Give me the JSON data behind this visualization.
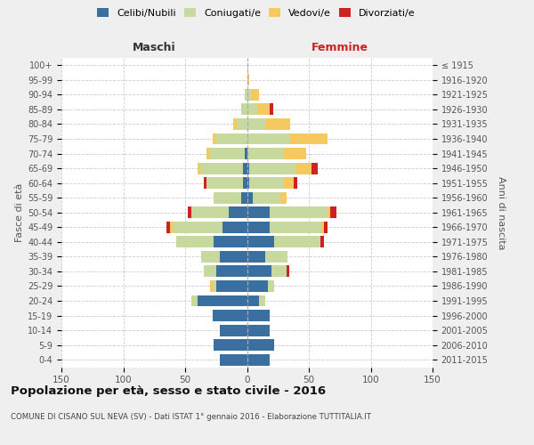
{
  "age_groups": [
    "0-4",
    "5-9",
    "10-14",
    "15-19",
    "20-24",
    "25-29",
    "30-34",
    "35-39",
    "40-44",
    "45-49",
    "50-54",
    "55-59",
    "60-64",
    "65-69",
    "70-74",
    "75-79",
    "80-84",
    "85-89",
    "90-94",
    "95-99",
    "100+"
  ],
  "birth_years": [
    "2011-2015",
    "2006-2010",
    "2001-2005",
    "1996-2000",
    "1991-1995",
    "1986-1990",
    "1981-1985",
    "1976-1980",
    "1971-1975",
    "1966-1970",
    "1961-1965",
    "1956-1960",
    "1951-1955",
    "1946-1950",
    "1941-1945",
    "1936-1940",
    "1931-1935",
    "1926-1930",
    "1921-1925",
    "1916-1920",
    "≤ 1915"
  ],
  "males": {
    "celibi": [
      22,
      27,
      22,
      28,
      40,
      25,
      25,
      22,
      27,
      20,
      15,
      5,
      3,
      3,
      2,
      0,
      0,
      0,
      0,
      0,
      0
    ],
    "coniugati": [
      0,
      0,
      0,
      0,
      5,
      3,
      10,
      15,
      30,
      40,
      30,
      22,
      30,
      35,
      28,
      25,
      8,
      5,
      2,
      0,
      0
    ],
    "vedovi": [
      0,
      0,
      0,
      0,
      0,
      2,
      0,
      0,
      0,
      2,
      0,
      0,
      0,
      2,
      3,
      3,
      3,
      0,
      0,
      0,
      0
    ],
    "divorziati": [
      0,
      0,
      0,
      0,
      0,
      0,
      0,
      0,
      0,
      3,
      3,
      0,
      2,
      0,
      0,
      0,
      0,
      0,
      0,
      0,
      0
    ]
  },
  "females": {
    "nubili": [
      18,
      22,
      18,
      18,
      10,
      17,
      20,
      15,
      22,
      18,
      18,
      5,
      2,
      2,
      0,
      0,
      0,
      0,
      0,
      0,
      0
    ],
    "coniugate": [
      0,
      0,
      0,
      0,
      5,
      5,
      12,
      18,
      37,
      42,
      47,
      22,
      28,
      38,
      30,
      35,
      15,
      8,
      3,
      0,
      0
    ],
    "vedove": [
      0,
      0,
      0,
      0,
      0,
      0,
      0,
      0,
      0,
      2,
      2,
      5,
      8,
      12,
      18,
      30,
      20,
      10,
      7,
      2,
      0
    ],
    "divorziate": [
      0,
      0,
      0,
      0,
      0,
      0,
      2,
      0,
      3,
      3,
      5,
      0,
      3,
      5,
      0,
      0,
      0,
      3,
      0,
      0,
      0
    ]
  },
  "colors": {
    "celibi": "#3B6FA0",
    "coniugati": "#C8D9A0",
    "vedovi": "#F5C860",
    "divorziati": "#CC2222"
  },
  "title": "Popolazione per età, sesso e stato civile - 2016",
  "subtitle": "COMUNE DI CISANO SUL NEVA (SV) - Dati ISTAT 1° gennaio 2016 - Elaborazione TUTTITALIA.IT",
  "xlabel_left": "Maschi",
  "xlabel_right": "Femmine",
  "ylabel_left": "Fasce di età",
  "ylabel_right": "Anni di nascita",
  "xlim": 150,
  "background": "#efefef",
  "plot_background": "#ffffff",
  "legend_labels": [
    "Celibi/Nubili",
    "Coniugati/e",
    "Vedovi/e",
    "Divorziati/e"
  ]
}
